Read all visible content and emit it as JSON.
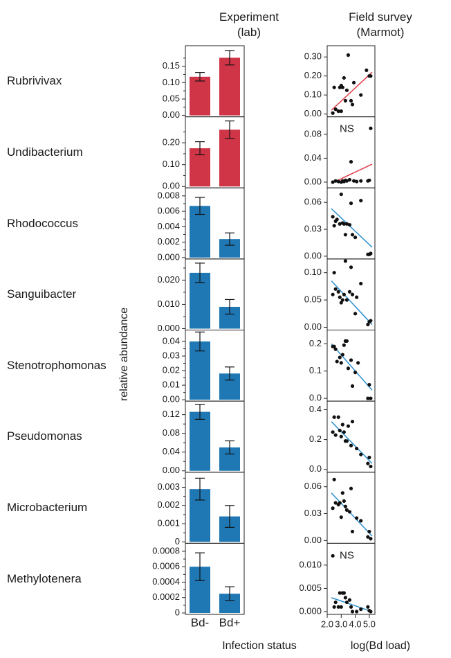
{
  "headers": {
    "experiment": "Experiment\n(lab)",
    "experiment_line1": "Experiment",
    "experiment_line2": "(lab)",
    "field_line1": "Field survey",
    "field_line2": "(Marmot)"
  },
  "y_axis_label": "relative abundance",
  "x_axis_left": "Infection status",
  "x_axis_right": "log(Bd load)",
  "bd_minus": "Bd-",
  "bd_plus": "Bd+",
  "ns_label": "NS",
  "colors": {
    "red": "#cf3547",
    "blue": "#1f78b4",
    "red_line": "#e03a44",
    "blue_line": "#2a8fd1"
  },
  "chart_data": {
    "type": "bar",
    "bar_categories": [
      "Bd-",
      "Bd+"
    ],
    "scatter_x_ticks": [
      "2.0",
      "3.0",
      "4.0",
      "5.0"
    ],
    "scatter_xlim": [
      2.0,
      5.4
    ],
    "panels": [
      {
        "genus": "Rubrivivax",
        "color": "red",
        "bar_ylim": [
          0,
          0.2
        ],
        "bar_ticks": [
          "0.00",
          "0.05",
          "0.10",
          "0.15"
        ],
        "bar_tick_vals": [
          0,
          0.05,
          0.1,
          0.15
        ],
        "bars": [
          0.118,
          0.176
        ],
        "errors": [
          0.013,
          0.022
        ],
        "scatter_ylim": [
          0,
          0.33
        ],
        "scatter_ticks": [
          "0.00",
          "0.10",
          "0.20",
          "0.30"
        ],
        "scatter_tick_vals": [
          0,
          0.1,
          0.2,
          0.3
        ],
        "points": [
          [
            2.4,
            0.005
          ],
          [
            2.5,
            0.14
          ],
          [
            2.6,
            0.025
          ],
          [
            2.8,
            0.015
          ],
          [
            2.9,
            0.14
          ],
          [
            3.0,
            0.015
          ],
          [
            3.0,
            0.15
          ],
          [
            3.1,
            0.14
          ],
          [
            3.2,
            0.19
          ],
          [
            3.3,
            0.07
          ],
          [
            3.4,
            0.125
          ],
          [
            3.5,
            0.31
          ],
          [
            3.7,
            0.07
          ],
          [
            3.8,
            0.05
          ],
          [
            3.9,
            0.165
          ],
          [
            4.4,
            0.1
          ],
          [
            4.8,
            0.23
          ],
          [
            5.0,
            0.2
          ],
          [
            5.1,
            0.2
          ]
        ],
        "trend": [
          [
            2.3,
            0.02
          ],
          [
            5.2,
            0.22
          ]
        ],
        "ns": false
      },
      {
        "genus": "Undibacterium",
        "color": "red",
        "bar_ylim": [
          0,
          0.3
        ],
        "bar_ticks": [
          "0.00",
          "0.10",
          "0.20"
        ],
        "bar_tick_vals": [
          0,
          0.1,
          0.2
        ],
        "bars": [
          0.175,
          0.26
        ],
        "errors": [
          0.03,
          0.04
        ],
        "scatter_ylim": [
          -0.005,
          0.1
        ],
        "scatter_ticks": [
          "0.00",
          "0.04",
          "0.08"
        ],
        "scatter_tick_vals": [
          0,
          0.04,
          0.08
        ],
        "points": [
          [
            2.4,
            0.0
          ],
          [
            2.6,
            0.002
          ],
          [
            2.8,
            0.001
          ],
          [
            3.0,
            0.0
          ],
          [
            3.1,
            0.002
          ],
          [
            3.2,
            0.001
          ],
          [
            3.3,
            0.003
          ],
          [
            3.4,
            0.002
          ],
          [
            3.6,
            0.004
          ],
          [
            3.7,
            0.034
          ],
          [
            3.9,
            0.002
          ],
          [
            4.1,
            0.001
          ],
          [
            4.4,
            0.002
          ],
          [
            4.9,
            0.002
          ],
          [
            5.0,
            0.003
          ],
          [
            5.1,
            0.09
          ]
        ],
        "trend": [
          [
            2.3,
            -0.002
          ],
          [
            5.2,
            0.03
          ]
        ],
        "ns": true
      },
      {
        "genus": "Rhodococcus",
        "color": "blue",
        "bar_ylim": [
          0,
          0.0085
        ],
        "bar_ticks": [
          "0.000",
          "0.002",
          "0.004",
          "0.006",
          "0.008"
        ],
        "bar_tick_vals": [
          0,
          0.002,
          0.004,
          0.006,
          0.008
        ],
        "bars": [
          0.0067,
          0.0024
        ],
        "errors": [
          0.0011,
          0.0008
        ],
        "scatter_ylim": [
          0,
          0.07
        ],
        "scatter_ticks": [
          "0.00",
          "0.03",
          "0.06"
        ],
        "scatter_tick_vals": [
          0,
          0.03,
          0.06
        ],
        "points": [
          [
            2.4,
            0.044
          ],
          [
            2.5,
            0.034
          ],
          [
            2.6,
            0.039
          ],
          [
            2.7,
            0.041
          ],
          [
            2.9,
            0.036
          ],
          [
            3.0,
            0.069
          ],
          [
            3.1,
            0.037
          ],
          [
            3.2,
            0.036
          ],
          [
            3.3,
            0.024
          ],
          [
            3.4,
            0.036
          ],
          [
            3.6,
            0.035
          ],
          [
            3.7,
            0.059
          ],
          [
            3.8,
            0.024
          ],
          [
            4.0,
            0.021
          ],
          [
            4.4,
            0.062
          ],
          [
            4.9,
            0.002
          ],
          [
            5.0,
            0.002
          ],
          [
            5.1,
            0.003
          ]
        ],
        "trend": [
          [
            2.3,
            0.053
          ],
          [
            5.2,
            0.01
          ]
        ],
        "ns": false
      },
      {
        "genus": "Sanguibacter",
        "color": "blue",
        "bar_ylim": [
          0,
          0.027
        ],
        "bar_ticks": [
          "0.000",
          "0.010",
          "0.020"
        ],
        "bar_tick_vals": [
          0,
          0.01,
          0.02
        ],
        "bars": [
          0.023,
          0.009
        ],
        "errors": [
          0.004,
          0.003
        ],
        "scatter_ylim": [
          0,
          0.115
        ],
        "scatter_ticks": [
          "0.00",
          "0.05",
          "0.10"
        ],
        "scatter_tick_vals": [
          0,
          0.05,
          0.1
        ],
        "points": [
          [
            2.4,
            0.06
          ],
          [
            2.5,
            0.1
          ],
          [
            2.6,
            0.07
          ],
          [
            2.8,
            0.065
          ],
          [
            2.9,
            0.055
          ],
          [
            3.0,
            0.045
          ],
          [
            3.1,
            0.05
          ],
          [
            3.2,
            0.06
          ],
          [
            3.3,
            0.125
          ],
          [
            3.4,
            0.05
          ],
          [
            3.6,
            0.065
          ],
          [
            3.7,
            0.11
          ],
          [
            3.8,
            0.06
          ],
          [
            4.0,
            0.025
          ],
          [
            4.1,
            0.055
          ],
          [
            4.4,
            0.08
          ],
          [
            4.9,
            0.005
          ],
          [
            5.0,
            0.01
          ],
          [
            5.1,
            0.012
          ]
        ],
        "trend": [
          [
            2.3,
            0.085
          ],
          [
            5.2,
            0.005
          ]
        ],
        "ns": false
      },
      {
        "genus": "Stenotrophomonas",
        "color": "blue",
        "bar_ylim": [
          0,
          0.045
        ],
        "bar_ticks": [
          "0.00",
          "0.01",
          "0.02",
          "0.03",
          "0.04"
        ],
        "bar_tick_vals": [
          0,
          0.01,
          0.02,
          0.03,
          0.04
        ],
        "bars": [
          0.04,
          0.018
        ],
        "errors": [
          0.0065,
          0.0045
        ],
        "scatter_ylim": [
          0,
          0.23
        ],
        "scatter_ticks": [
          "0.0",
          "0.1",
          "0.2"
        ],
        "scatter_tick_vals": [
          0,
          0.1,
          0.2
        ],
        "points": [
          [
            2.4,
            0.19
          ],
          [
            2.5,
            0.19
          ],
          [
            2.6,
            0.18
          ],
          [
            2.7,
            0.135
          ],
          [
            2.9,
            0.15
          ],
          [
            3.0,
            0.13
          ],
          [
            3.1,
            0.16
          ],
          [
            3.2,
            0.195
          ],
          [
            3.3,
            0.21
          ],
          [
            3.4,
            0.21
          ],
          [
            3.5,
            0.11
          ],
          [
            3.7,
            0.14
          ],
          [
            3.8,
            0.045
          ],
          [
            4.0,
            0.095
          ],
          [
            4.2,
            0.13
          ],
          [
            4.9,
            0.0
          ],
          [
            5.0,
            0.05
          ],
          [
            5.1,
            0.0
          ]
        ],
        "trend": [
          [
            2.3,
            0.2
          ],
          [
            5.2,
            0.03
          ]
        ],
        "ns": false
      },
      {
        "genus": "Pseudomonas",
        "color": "blue",
        "bar_ylim": [
          0,
          0.14
        ],
        "bar_ticks": [
          "0.00",
          "0.04",
          "0.08",
          "0.12"
        ],
        "bar_tick_vals": [
          0,
          0.04,
          0.08,
          0.12
        ],
        "bars": [
          0.126,
          0.05
        ],
        "errors": [
          0.016,
          0.014
        ],
        "scatter_ylim": [
          0,
          0.42
        ],
        "scatter_ticks": [
          "0.0",
          "0.2",
          "0.4"
        ],
        "scatter_tick_vals": [
          0,
          0.2,
          0.4
        ],
        "points": [
          [
            2.4,
            0.25
          ],
          [
            2.5,
            0.35
          ],
          [
            2.6,
            0.23
          ],
          [
            2.8,
            0.35
          ],
          [
            2.9,
            0.26
          ],
          [
            3.0,
            0.22
          ],
          [
            3.1,
            0.3
          ],
          [
            3.2,
            0.25
          ],
          [
            3.3,
            0.19
          ],
          [
            3.4,
            0.19
          ],
          [
            3.5,
            0.29
          ],
          [
            3.7,
            0.16
          ],
          [
            3.8,
            0.32
          ],
          [
            4.1,
            0.14
          ],
          [
            4.4,
            0.1
          ],
          [
            4.9,
            0.04
          ],
          [
            5.0,
            0.08
          ],
          [
            5.1,
            0.02
          ]
        ],
        "trend": [
          [
            2.3,
            0.32
          ],
          [
            5.2,
            0.04
          ]
        ],
        "ns": false
      },
      {
        "genus": "Microbacterium",
        "color": "blue",
        "bar_ylim": [
          0,
          0.0036
        ],
        "bar_ticks": [
          "0",
          "0.001",
          "0.002",
          "0.003"
        ],
        "bar_tick_vals": [
          0,
          0.001,
          0.002,
          0.003
        ],
        "bars": [
          0.0029,
          0.0014
        ],
        "errors": [
          0.0006,
          0.0006
        ],
        "scatter_ylim": [
          0,
          0.07
        ],
        "scatter_ticks": [
          "0.00",
          "0.03",
          "0.06"
        ],
        "scatter_tick_vals": [
          0,
          0.03,
          0.06
        ],
        "points": [
          [
            2.4,
            0.036
          ],
          [
            2.5,
            0.068
          ],
          [
            2.6,
            0.042
          ],
          [
            2.8,
            0.04
          ],
          [
            2.9,
            0.042
          ],
          [
            3.0,
            0.026
          ],
          [
            3.1,
            0.053
          ],
          [
            3.2,
            0.044
          ],
          [
            3.3,
            0.038
          ],
          [
            3.4,
            0.034
          ],
          [
            3.6,
            0.032
          ],
          [
            3.7,
            0.058
          ],
          [
            3.8,
            0.01
          ],
          [
            4.1,
            0.025
          ],
          [
            4.4,
            0.022
          ],
          [
            4.9,
            0.004
          ],
          [
            5.0,
            0.01
          ],
          [
            5.1,
            0.002
          ]
        ],
        "trend": [
          [
            2.3,
            0.053
          ],
          [
            5.2,
            0.005
          ]
        ],
        "ns": false
      },
      {
        "genus": "Methylotenera",
        "color": "blue",
        "bar_ylim": [
          0,
          0.00085
        ],
        "bar_ticks": [
          "0",
          "0.0002",
          "0.0004",
          "0.0006",
          "0.0008"
        ],
        "bar_tick_vals": [
          0,
          0.0002,
          0.0004,
          0.0006,
          0.0008
        ],
        "bars": [
          0.0006,
          0.00025
        ],
        "errors": [
          0.00018,
          9e-05
        ],
        "scatter_ylim": [
          0,
          0.0135
        ],
        "scatter_ticks": [
          "0.000",
          "0.005",
          "0.010"
        ],
        "scatter_tick_vals": [
          0,
          0.005,
          0.01
        ],
        "points": [
          [
            2.4,
            0.012
          ],
          [
            2.5,
            0.001
          ],
          [
            2.6,
            0.002
          ],
          [
            2.8,
            0.001
          ],
          [
            2.9,
            0.004
          ],
          [
            3.0,
            0.001
          ],
          [
            3.1,
            0.004
          ],
          [
            3.2,
            0.004
          ],
          [
            3.3,
            0.003
          ],
          [
            3.4,
            0.002
          ],
          [
            3.6,
            0.0025
          ],
          [
            3.7,
            0.001
          ],
          [
            3.8,
            0.0
          ],
          [
            4.1,
            0.0
          ],
          [
            4.4,
            0.0005
          ],
          [
            4.9,
            0.001
          ],
          [
            5.0,
            0.0002
          ],
          [
            5.1,
            0.0
          ]
        ],
        "trend": [
          [
            2.3,
            0.003
          ],
          [
            5.2,
            0.0
          ]
        ],
        "ns": true
      }
    ]
  }
}
